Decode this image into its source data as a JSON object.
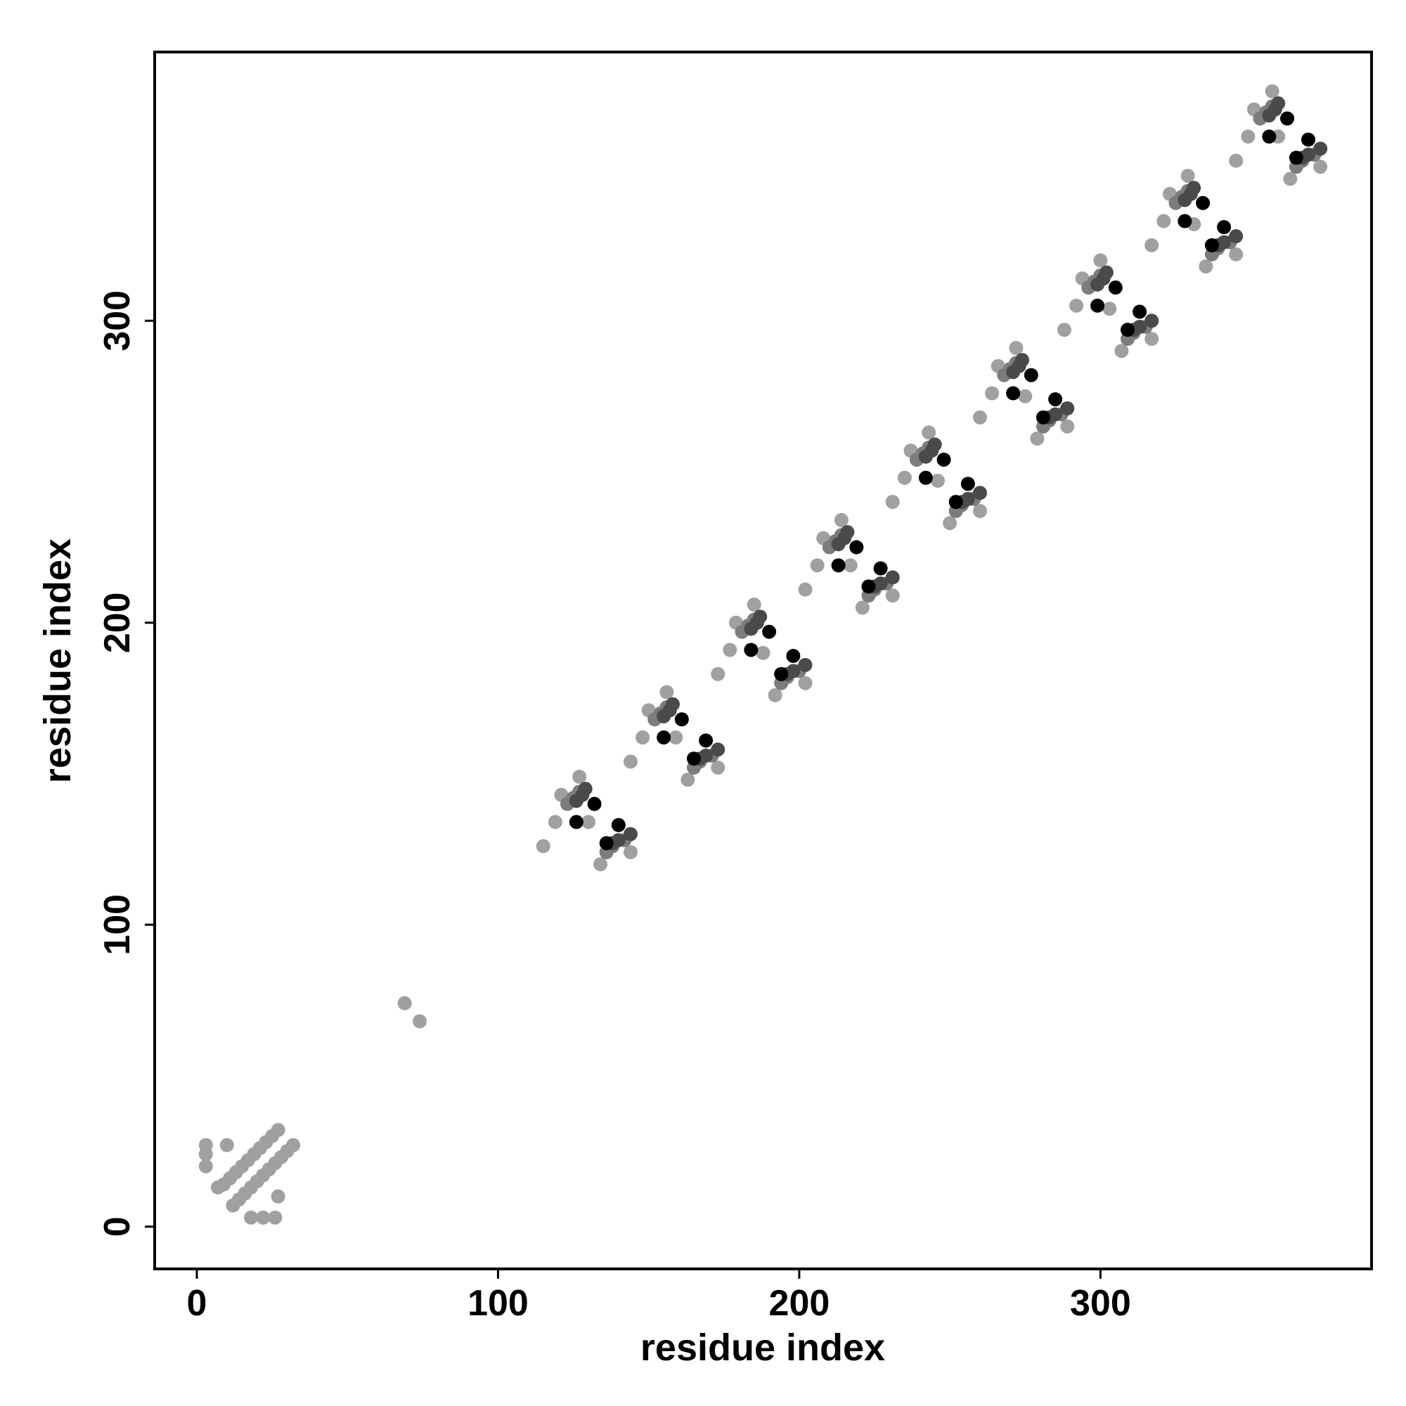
{
  "chart_data": {
    "type": "scatter",
    "x_label": "residue index",
    "y_label": "residue index",
    "xlim": [
      -14,
      390
    ],
    "ylim": [
      -14,
      389
    ],
    "xticks": [
      0,
      100,
      200,
      300
    ],
    "yticks": [
      0,
      100,
      200,
      300
    ],
    "series": [
      {
        "color": "#a0a0a0",
        "x": [
          3,
          3,
          3,
          7,
          9,
          11,
          13,
          15,
          17,
          19,
          21,
          23,
          25,
          27,
          10,
          12,
          14,
          16,
          18,
          20,
          22,
          24,
          26,
          28,
          30,
          32,
          18,
          22,
          26,
          27,
          69,
          74,
          119,
          121,
          127,
          115,
          134,
          144,
          130,
          148,
          150,
          156,
          144,
          163,
          173,
          159,
          177,
          179,
          185,
          173,
          192,
          202,
          188,
          206,
          208,
          214,
          202,
          221,
          231,
          217,
          235,
          237,
          243,
          231,
          250,
          260,
          246,
          264,
          266,
          272,
          260,
          279,
          289,
          275,
          292,
          294,
          300,
          288,
          307,
          317,
          303,
          321,
          323,
          329,
          317,
          335,
          345,
          331,
          349,
          351,
          357,
          345,
          363,
          373,
          359
        ],
        "y": [
          27,
          24,
          20,
          13,
          14,
          16,
          18,
          20,
          22,
          24,
          26,
          28,
          30,
          32,
          27,
          7,
          9,
          11,
          13,
          15,
          17,
          19,
          21,
          23,
          25,
          27,
          3,
          3,
          3,
          10,
          74,
          68,
          134,
          143,
          149,
          126,
          120,
          124,
          134,
          162,
          171,
          177,
          154,
          148,
          152,
          162,
          191,
          200,
          206,
          183,
          176,
          180,
          190,
          219,
          228,
          234,
          211,
          205,
          209,
          219,
          248,
          257,
          263,
          240,
          233,
          237,
          247,
          276,
          285,
          291,
          268,
          261,
          265,
          275,
          305,
          314,
          320,
          297,
          290,
          294,
          304,
          333,
          342,
          348,
          325,
          318,
          322,
          332,
          361,
          370,
          376,
          353,
          347,
          351,
          361
        ]
      },
      {
        "color": "#7c7c7c",
        "x": [
          123,
          125,
          127,
          136,
          138,
          142,
          152,
          154,
          156,
          165,
          167,
          171,
          181,
          183,
          185,
          194,
          196,
          200,
          210,
          212,
          214,
          223,
          225,
          229,
          239,
          241,
          243,
          252,
          254,
          258,
          268,
          270,
          272,
          281,
          283,
          287,
          296,
          298,
          300,
          309,
          311,
          315,
          325,
          327,
          329,
          337,
          339,
          343,
          353,
          355,
          357,
          365,
          367,
          371
        ],
        "y": [
          140,
          142,
          144,
          124,
          126,
          128,
          168,
          170,
          172,
          152,
          154,
          156,
          197,
          199,
          201,
          180,
          182,
          184,
          225,
          227,
          229,
          209,
          211,
          213,
          254,
          256,
          258,
          237,
          239,
          241,
          282,
          284,
          286,
          265,
          267,
          269,
          311,
          313,
          315,
          294,
          296,
          298,
          339,
          341,
          343,
          322,
          324,
          326,
          367,
          369,
          371,
          351,
          353,
          355
        ]
      },
      {
        "color": "#4a4a4a",
        "x": [
          126,
          128,
          129,
          138,
          140,
          144,
          155,
          157,
          158,
          167,
          169,
          173,
          184,
          186,
          187,
          196,
          198,
          202,
          213,
          215,
          216,
          225,
          227,
          231,
          242,
          244,
          245,
          254,
          256,
          260,
          271,
          273,
          274,
          283,
          285,
          289,
          299,
          301,
          302,
          311,
          313,
          317,
          328,
          330,
          331,
          339,
          341,
          345,
          356,
          358,
          359,
          367,
          369,
          373
        ],
        "y": [
          141,
          143,
          145,
          127,
          128,
          130,
          169,
          171,
          173,
          155,
          156,
          158,
          198,
          200,
          202,
          183,
          184,
          186,
          226,
          228,
          230,
          212,
          213,
          215,
          255,
          257,
          259,
          240,
          241,
          243,
          283,
          285,
          287,
          268,
          269,
          271,
          312,
          314,
          316,
          297,
          298,
          300,
          340,
          342,
          344,
          325,
          326,
          328,
          368,
          370,
          372,
          354,
          355,
          357
        ]
      },
      {
        "color": "#000000",
        "x": [
          132,
          126,
          140,
          136,
          161,
          155,
          169,
          165,
          190,
          184,
          198,
          194,
          219,
          213,
          227,
          223,
          248,
          242,
          256,
          252,
          277,
          271,
          285,
          281,
          305,
          299,
          313,
          309,
          334,
          328,
          341,
          337,
          362,
          356,
          369,
          365
        ],
        "y": [
          140,
          134,
          133,
          127,
          168,
          162,
          161,
          155,
          197,
          191,
          189,
          183,
          225,
          219,
          218,
          212,
          254,
          248,
          246,
          240,
          282,
          276,
          274,
          268,
          311,
          305,
          303,
          297,
          339,
          333,
          331,
          325,
          367,
          361,
          360,
          354
        ]
      }
    ]
  }
}
